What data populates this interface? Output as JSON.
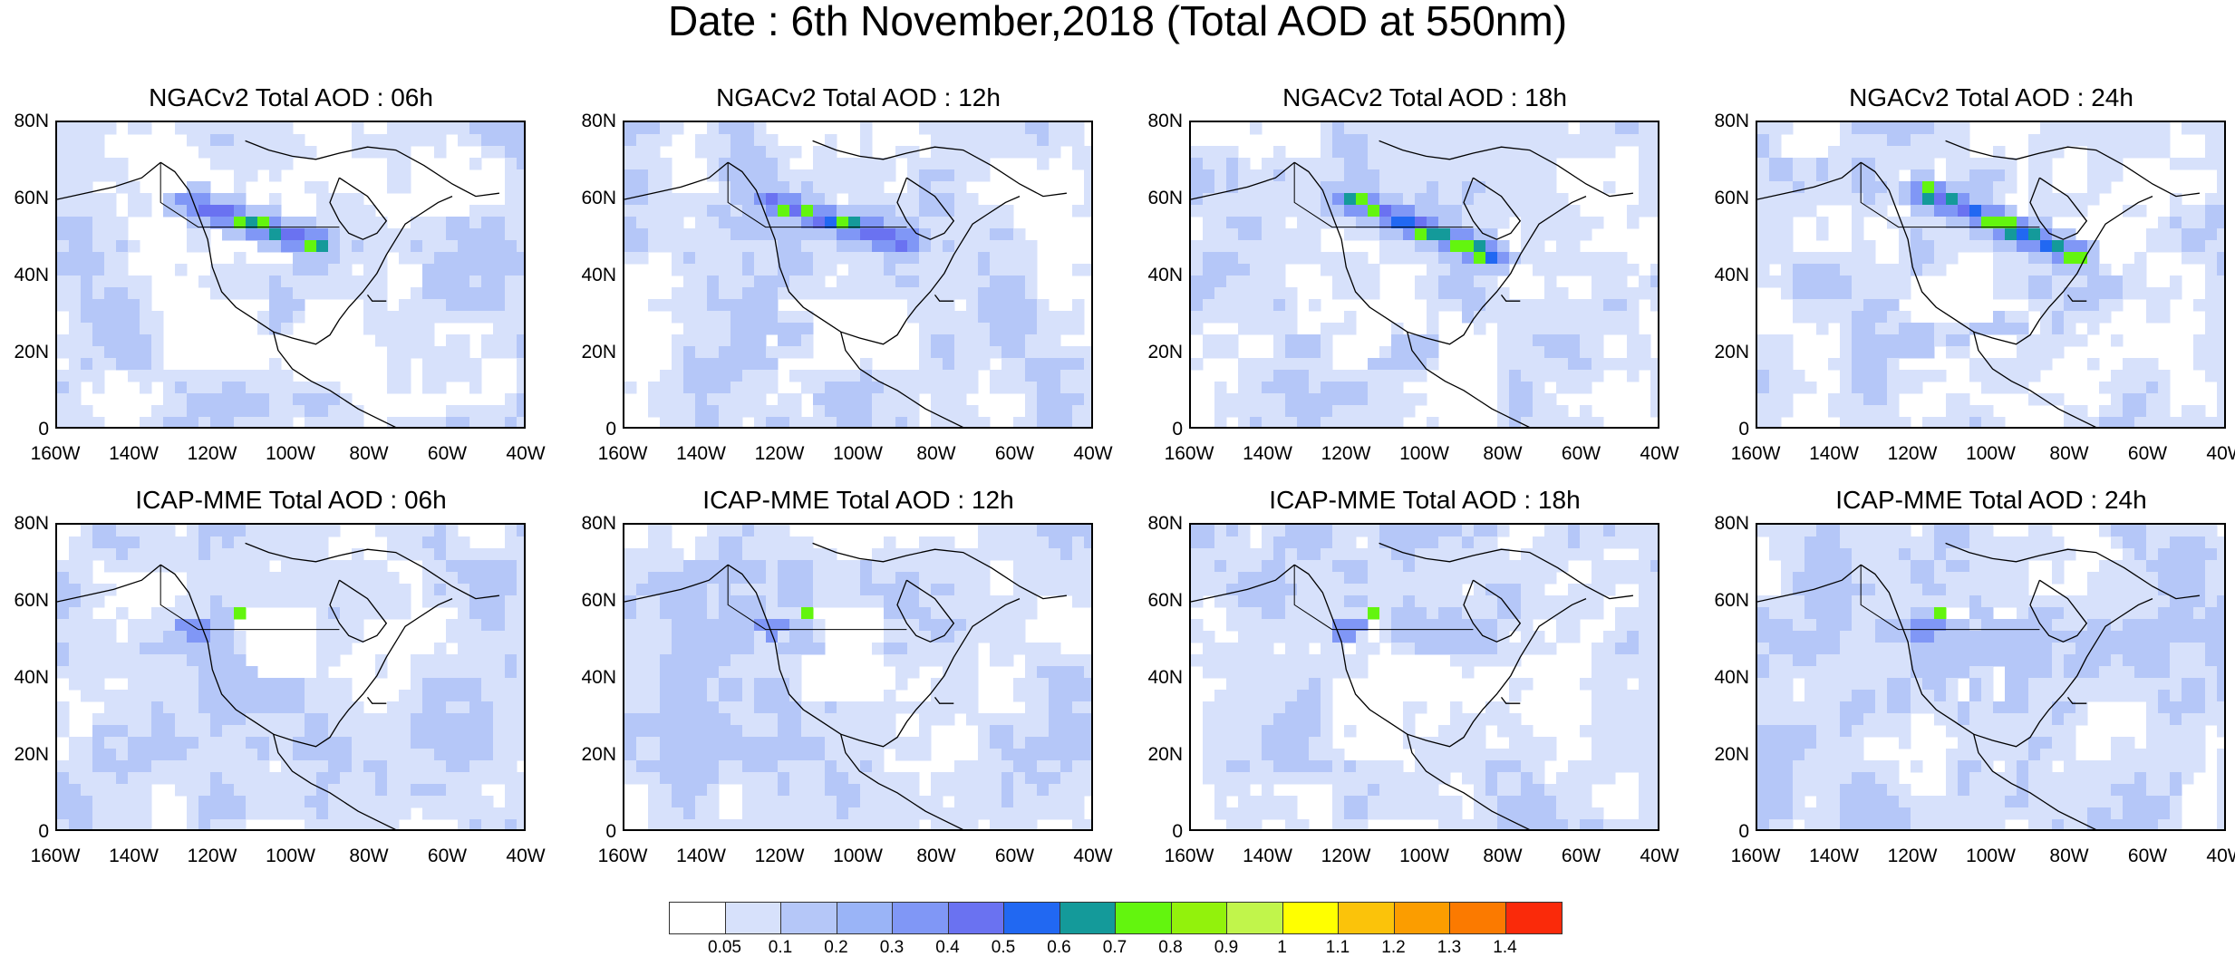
{
  "title": "Date : 6th November,2018 (Total AOD at 550nm)",
  "panels": [
    {
      "title": "NGACv2 Total AOD : 06h"
    },
    {
      "title": "NGACv2 Total AOD : 12h"
    },
    {
      "title": "NGACv2 Total AOD : 18h"
    },
    {
      "title": "NGACv2 Total AOD : 24h"
    },
    {
      "title": "ICAP-MME Total AOD : 06h"
    },
    {
      "title": "ICAP-MME Total AOD : 12h"
    },
    {
      "title": "ICAP-MME Total AOD : 18h"
    },
    {
      "title": "ICAP-MME Total AOD : 24h"
    }
  ],
  "axes": {
    "lat_labels": [
      "80N",
      "60N",
      "40N",
      "20N",
      "0"
    ],
    "lon_labels": [
      "160W",
      "140W",
      "120W",
      "100W",
      "80W",
      "60W",
      "40W"
    ]
  },
  "colorbar": {
    "colors": [
      "#ffffff",
      "#d7e1fb",
      "#b5c7f8",
      "#9ab4f7",
      "#8097f6",
      "#6a72f1",
      "#2168f2",
      "#149a9a",
      "#63f50e",
      "#92f20c",
      "#c1f54b",
      "#ffff00",
      "#fbc30a",
      "#fb9d00",
      "#fb7a00",
      "#fa2a0a"
    ],
    "labels": [
      "0.05",
      "0.1",
      "0.2",
      "0.3",
      "0.4",
      "0.5",
      "0.6",
      "0.7",
      "0.8",
      "0.9",
      "1",
      "1.1",
      "1.2",
      "1.3",
      "1.4"
    ]
  }
}
